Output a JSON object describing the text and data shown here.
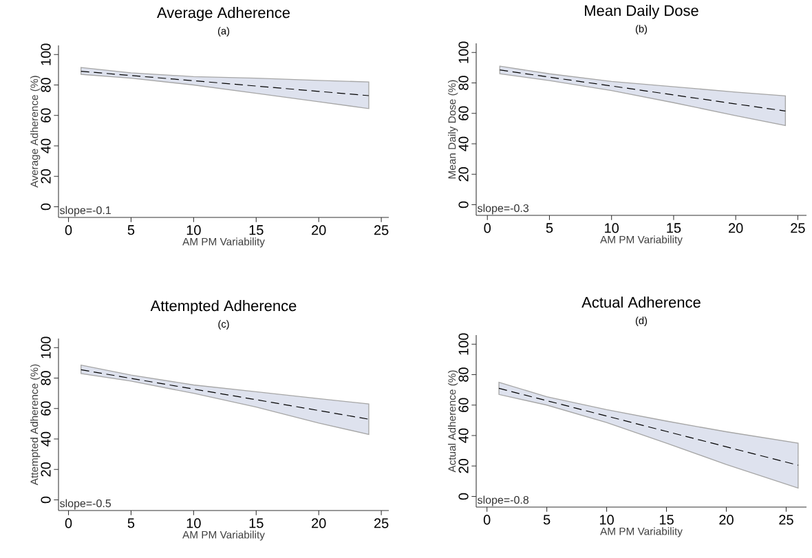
{
  "chart_data": [
    {
      "type": "line",
      "title": "Average Adherence",
      "subtitle": "(a)",
      "xlabel": "AM PM Variability",
      "ylabel": "Average Adherence (%)",
      "annotations": [
        "slope=-0.1"
      ],
      "x": [
        1,
        5,
        10,
        15,
        20,
        24
      ],
      "series": [
        {
          "color": "#000000",
          "values": [
            89,
            86.2,
            82.8,
            79.3,
            75.8,
            73
          ],
          "lower": [
            87,
            84.5,
            80,
            74.5,
            69,
            64.5
          ],
          "upper": [
            91.5,
            88,
            85.5,
            84.5,
            83,
            82
          ]
        }
      ],
      "line_style": "dashed",
      "xlim": [
        -0.8,
        25.6
      ],
      "ylim": [
        -7,
        106
      ],
      "xticks": [
        0,
        5,
        10,
        15,
        20,
        25
      ],
      "yticks": [
        0,
        20,
        40,
        60,
        80,
        100
      ]
    },
    {
      "type": "line",
      "title": "Mean Daily Dose",
      "subtitle": "(b)",
      "xlabel": "AM PM Variability",
      "ylabel": "Mean Daily Dose (%)",
      "annotations": [
        "slope=-0.3"
      ],
      "x": [
        1,
        5,
        10,
        15,
        20,
        24
      ],
      "series": [
        {
          "color": "#000000",
          "values": [
            88.5,
            83.8,
            78,
            72.1,
            66.2,
            61.5
          ],
          "lower": [
            86,
            81.5,
            75,
            67,
            58.5,
            52
          ],
          "upper": [
            91,
            86,
            81,
            77.5,
            74,
            71.5
          ]
        }
      ],
      "line_style": "dashed",
      "xlim": [
        -0.9,
        25.7
      ],
      "ylim": [
        -7,
        106
      ],
      "xticks": [
        0,
        5,
        10,
        15,
        20,
        25
      ],
      "yticks": [
        0,
        20,
        40,
        60,
        80,
        100
      ]
    },
    {
      "type": "line",
      "title": "Attempted Adherence",
      "subtitle": "(c)",
      "xlabel": "AM PM Variability",
      "ylabel": "Attempted Adherence (%)",
      "annotations": [
        "slope=-0.5"
      ],
      "x": [
        1,
        5,
        10,
        15,
        20,
        24
      ],
      "series": [
        {
          "color": "#000000",
          "values": [
            85.5,
            79.8,
            72.8,
            65.8,
            58.7,
            53
          ],
          "lower": [
            83,
            78,
            70,
            61,
            50.5,
            43
          ],
          "upper": [
            88.5,
            82,
            75.5,
            71,
            66.5,
            63
          ]
        }
      ],
      "line_style": "dashed",
      "xlim": [
        -0.8,
        25.6
      ],
      "ylim": [
        -7,
        106
      ],
      "xticks": [
        0,
        5,
        10,
        15,
        20,
        25
      ],
      "yticks": [
        0,
        20,
        40,
        60,
        80,
        100
      ]
    },
    {
      "type": "line",
      "title": "Actual Adherence",
      "subtitle": "(d)",
      "xlabel": "AM PM Variability",
      "ylabel": "Actual Adherence (%)",
      "annotations": [
        "slope=-0.8"
      ],
      "x": [
        1,
        5,
        10,
        15,
        20,
        26
      ],
      "series": [
        {
          "color": "#000000",
          "values": [
            71,
            62.9,
            52.8,
            42.7,
            32.6,
            20.5
          ],
          "lower": [
            67,
            60,
            48.5,
            35,
            21,
            5.5
          ],
          "upper": [
            75,
            65.5,
            57,
            49.5,
            42.5,
            35
          ]
        }
      ],
      "line_style": "dashed",
      "xlim": [
        -0.9,
        26.7
      ],
      "ylim": [
        -7,
        106
      ],
      "xticks": [
        0,
        5,
        10,
        15,
        20,
        25
      ],
      "yticks": [
        0,
        20,
        40,
        60,
        80,
        100
      ]
    }
  ]
}
